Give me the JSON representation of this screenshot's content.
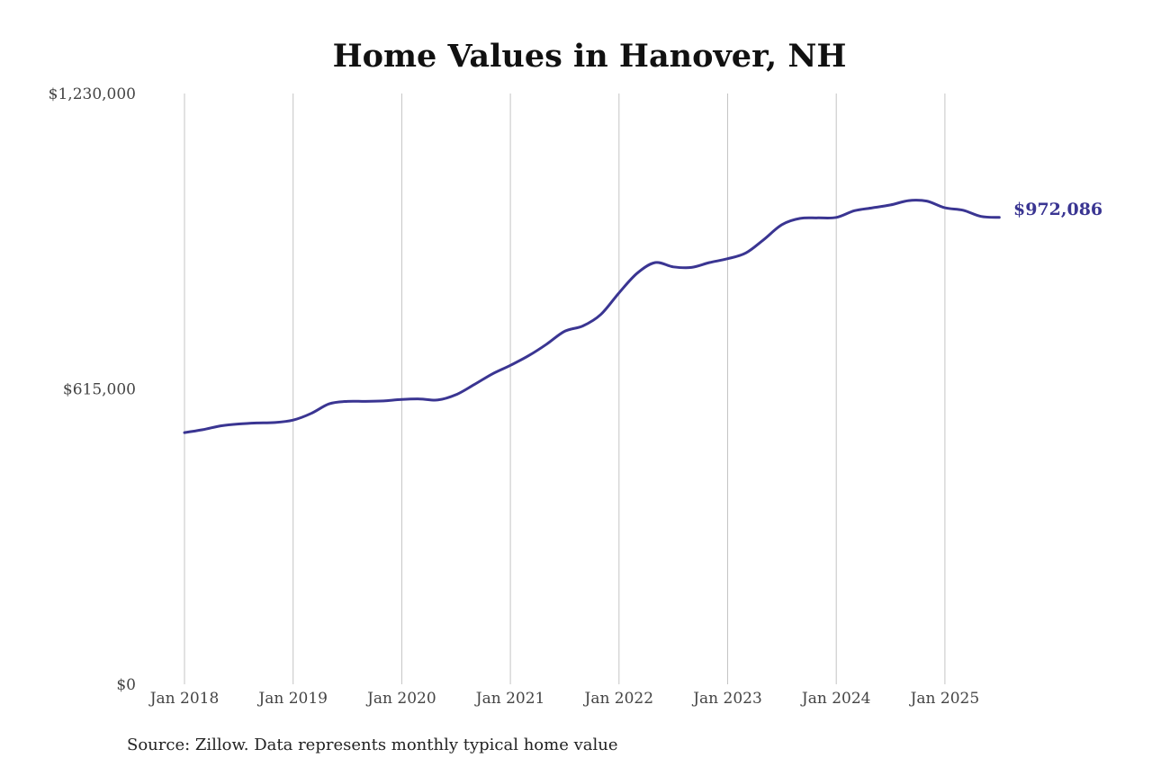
{
  "chart_data": {
    "type": "line",
    "title": "Home Values in Hanover, NH",
    "source": "Source: Zillow. Data represents monthly typical home value",
    "y_ticks": [
      {
        "value": 0,
        "label": "$0"
      },
      {
        "value": 615000,
        "label": "$615,000"
      },
      {
        "value": 1230000,
        "label": "$1,230,000"
      }
    ],
    "ylim": [
      0,
      1230000
    ],
    "x_ticks": [
      {
        "value": 2018,
        "label": "Jan 2018"
      },
      {
        "value": 2019,
        "label": "Jan 2019"
      },
      {
        "value": 2020,
        "label": "Jan 2020"
      },
      {
        "value": 2021,
        "label": "Jan 2021"
      },
      {
        "value": 2022,
        "label": "Jan 2022"
      },
      {
        "value": 2023,
        "label": "Jan 2023"
      },
      {
        "value": 2024,
        "label": "Jan 2024"
      },
      {
        "value": 2025,
        "label": "Jan 2025"
      }
    ],
    "grid": "vertical",
    "line_color": "#3a3592",
    "end_label": "$972,086",
    "series": [
      {
        "x": [
          2018.0,
          2018.167,
          2018.333,
          2018.5,
          2018.667,
          2018.833,
          2019.0,
          2019.167,
          2019.333,
          2019.5,
          2019.667,
          2019.833,
          2020.0,
          2020.167,
          2020.333,
          2020.5,
          2020.667,
          2020.833,
          2021.0,
          2021.167,
          2021.333,
          2021.5,
          2021.667,
          2021.833,
          2022.0,
          2022.167,
          2022.333,
          2022.5,
          2022.667,
          2022.833,
          2023.0,
          2023.167,
          2023.333,
          2023.5,
          2023.667,
          2023.833,
          2024.0,
          2024.167,
          2024.333,
          2024.5,
          2024.667,
          2024.833,
          2025.0,
          2025.167,
          2025.333,
          2025.5
        ],
        "y": [
          524000,
          530000,
          538000,
          542000,
          544000,
          545000,
          550000,
          564000,
          584000,
          589000,
          589000,
          590000,
          593000,
          594000,
          592000,
          603000,
          624000,
          646000,
          664000,
          684000,
          708000,
          735000,
          746000,
          770000,
          815000,
          856000,
          878000,
          869000,
          868000,
          878000,
          886000,
          898000,
          926000,
          957000,
          970000,
          971000,
          972000,
          986000,
          992000,
          998000,
          1007000,
          1006000,
          992000,
          987000,
          974000,
          972086
        ]
      }
    ]
  }
}
